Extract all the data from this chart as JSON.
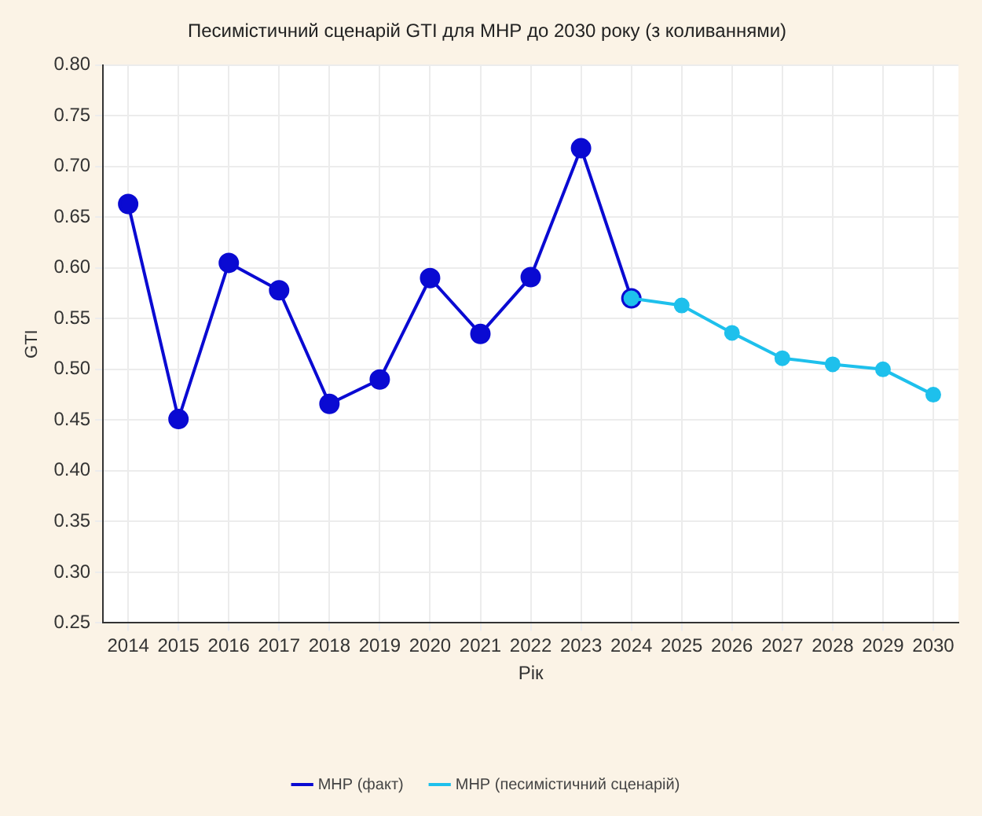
{
  "chart_data": {
    "type": "line",
    "title": "Песимістичний сценарій GTI для МНР до 2030 року (з коливаннями)",
    "xlabel": "Рік",
    "ylabel": "GTI",
    "categories": [
      "2014",
      "2015",
      "2016",
      "2017",
      "2018",
      "2019",
      "2020",
      "2021",
      "2022",
      "2023",
      "2024",
      "2025",
      "2026",
      "2027",
      "2028",
      "2029",
      "2030"
    ],
    "series": [
      {
        "name": "МНР (факт)",
        "color": "#0a0ad2",
        "values": [
          0.663,
          0.451,
          0.605,
          0.578,
          0.466,
          0.49,
          0.59,
          0.535,
          0.591,
          0.718,
          0.57,
          null,
          null,
          null,
          null,
          null,
          null
        ]
      },
      {
        "name": "МНР (песимістичний сценарій)",
        "color": "#1ec0ec",
        "values": [
          null,
          null,
          null,
          null,
          null,
          null,
          null,
          null,
          null,
          null,
          0.57,
          0.563,
          0.536,
          0.511,
          0.505,
          0.5,
          0.475
        ]
      }
    ],
    "ylim": [
      0.25,
      0.8
    ],
    "yticks": [
      0.25,
      {
        "value": 0.3,
        "label": "0.30"
      },
      0.35,
      {
        "value": 0.4,
        "label": "0.40"
      },
      0.45,
      {
        "value": 0.5,
        "label": "0.50"
      },
      0.55,
      {
        "value": 0.6,
        "label": "0.60"
      },
      0.65,
      {
        "value": 0.7,
        "label": "0.70"
      },
      0.75,
      {
        "value": 0.8,
        "label": "0.80"
      }
    ],
    "grid": true,
    "legend": "bottom",
    "marker": "circle",
    "line_style": "solid"
  }
}
